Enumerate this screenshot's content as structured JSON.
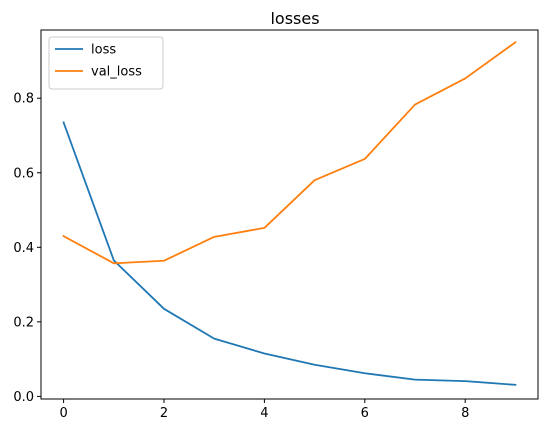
{
  "chart_data": {
    "type": "line",
    "title": "losses",
    "xlabel": "",
    "ylabel": "",
    "x": [
      0,
      1,
      2,
      3,
      4,
      5,
      6,
      7,
      8,
      9
    ],
    "xlim": [
      -0.45,
      9.45
    ],
    "ylim": [
      -0.007,
      0.983
    ],
    "xticks": [
      0,
      2,
      4,
      6,
      8
    ],
    "xtick_labels": [
      "0",
      "2",
      "4",
      "6",
      "8"
    ],
    "yticks": [
      0.0,
      0.2,
      0.4,
      0.6,
      0.8
    ],
    "ytick_labels": [
      "0.0",
      "0.2",
      "0.4",
      "0.6",
      "0.8"
    ],
    "grid": false,
    "legend_position": "top-left",
    "series": [
      {
        "name": "loss",
        "color": "#1f77b4",
        "values": [
          0.735,
          0.365,
          0.235,
          0.155,
          0.115,
          0.085,
          0.062,
          0.045,
          0.041,
          0.031
        ]
      },
      {
        "name": "val_loss",
        "color": "#ff7f0e",
        "values": [
          0.43,
          0.357,
          0.364,
          0.428,
          0.452,
          0.58,
          0.637,
          0.783,
          0.853,
          0.95
        ]
      }
    ]
  }
}
